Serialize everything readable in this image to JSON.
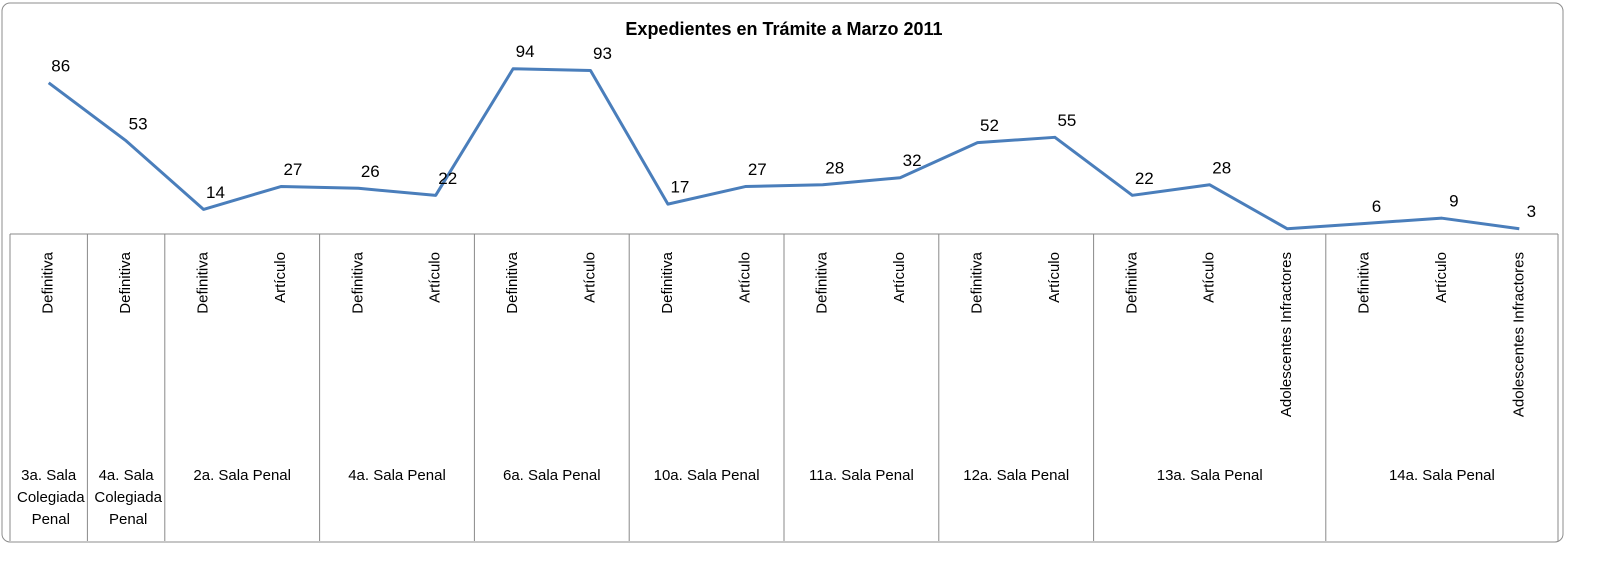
{
  "chart_data": {
    "type": "line",
    "title": "Expedientes en Trámite a Marzo 2011",
    "groups": [
      {
        "name": "3a. Sala Colegiada Penal",
        "categories": [
          "Definitiva"
        ]
      },
      {
        "name": "4a. Sala Colegiada Penal",
        "categories": [
          "Definitiva"
        ]
      },
      {
        "name": "2a. Sala Penal",
        "categories": [
          "Definitiva",
          "Artículo"
        ]
      },
      {
        "name": "4a. Sala Penal",
        "categories": [
          "Definitiva",
          "Artículo"
        ]
      },
      {
        "name": "6a. Sala Penal",
        "categories": [
          "Definitiva",
          "Artículo"
        ]
      },
      {
        "name": "10a. Sala Penal",
        "categories": [
          "Definitiva",
          "Artículo"
        ]
      },
      {
        "name": "11a. Sala Penal",
        "categories": [
          "Definitiva",
          "Artículo"
        ]
      },
      {
        "name": "12a. Sala Penal",
        "categories": [
          "Definitiva",
          "Artículo"
        ]
      },
      {
        "name": "13a. Sala Penal",
        "categories": [
          "Definitiva",
          "Artículo",
          "Adolescentes Infractores"
        ]
      },
      {
        "name": "14a. Sala Penal",
        "categories": [
          "Definitiva",
          "Artículo",
          "Adolescentes Infractores"
        ]
      }
    ],
    "values": [
      86,
      53,
      14,
      27,
      26,
      22,
      94,
      93,
      17,
      27,
      28,
      32,
      52,
      55,
      22,
      28,
      3,
      6,
      9,
      3
    ],
    "value_labels": [
      "86",
      "53",
      "14",
      "27",
      "26",
      "22",
      "94",
      "93",
      "17",
      "27",
      "28",
      "32",
      "52",
      "55",
      "22",
      "28",
      null,
      "6",
      "9",
      "3"
    ],
    "color": "#4a7ebb"
  }
}
